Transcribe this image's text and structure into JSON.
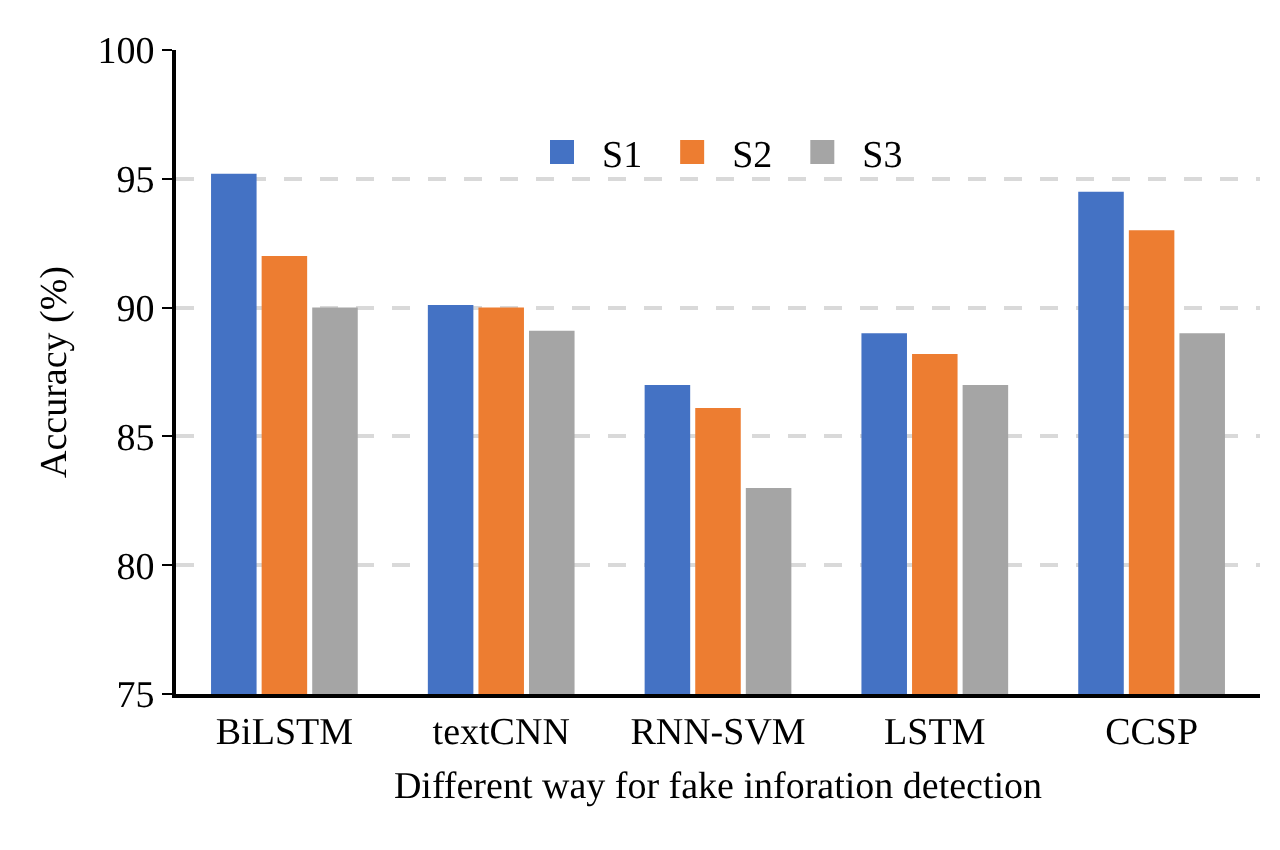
{
  "chart_data": {
    "type": "bar",
    "xlabel": "Different way for fake inforation detection",
    "ylabel": "Accuracy (%)",
    "categories": [
      "BiLSTM",
      "textCNN",
      "RNN-SVM",
      "LSTM",
      "CCSP"
    ],
    "series": [
      {
        "name": "S1",
        "color": "#4472c4",
        "values": [
          95.2,
          90.1,
          87.0,
          89.0,
          94.5
        ]
      },
      {
        "name": "S2",
        "color": "#ed7d31",
        "values": [
          92.0,
          90.0,
          86.1,
          88.2,
          93.0
        ]
      },
      {
        "name": "S3",
        "color": "#a5a5a5",
        "values": [
          90.0,
          89.1,
          83.0,
          87.0,
          89.0
        ]
      }
    ],
    "ylim": [
      75,
      100
    ],
    "yticks": [
      75,
      80,
      85,
      90,
      95,
      100
    ],
    "grid": "y",
    "legend": "top"
  }
}
